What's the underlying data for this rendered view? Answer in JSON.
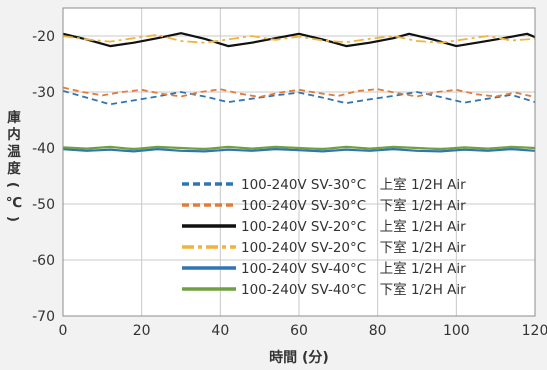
{
  "chart_data": {
    "type": "line",
    "title": "",
    "xlabel": "時間 (分)",
    "ylabel": [
      "庫",
      "内",
      "温",
      "度",
      "(",
      "℃",
      ")"
    ],
    "xlim": [
      0,
      120
    ],
    "ylim": [
      -70,
      -15
    ],
    "xticks": [
      0,
      20,
      40,
      60,
      80,
      100,
      120
    ],
    "yticks": [
      -20,
      -30,
      -40,
      -50,
      -60,
      -70
    ],
    "grid": true,
    "legend_position": "bottom-right",
    "series": [
      {
        "name": "100-240V SV-30°C　上室 1/2H Air",
        "color": "#2e75b6",
        "dash": "dashed",
        "x": [
          0,
          6,
          12,
          18,
          24,
          30,
          36,
          42,
          48,
          54,
          60,
          66,
          72,
          78,
          84,
          90,
          96,
          102,
          108,
          114,
          120
        ],
        "y": [
          -29.8,
          -31.0,
          -32.2,
          -31.5,
          -30.8,
          -30.0,
          -30.8,
          -31.8,
          -31.2,
          -30.6,
          -30.1,
          -31.0,
          -32.0,
          -31.3,
          -30.7,
          -30.0,
          -30.9,
          -31.9,
          -31.2,
          -30.5,
          -31.8
        ]
      },
      {
        "name": "100-240V SV-30°C　下室 1/2H Air",
        "color": "#e07b39",
        "dash": "dashed",
        "x": [
          0,
          5,
          10,
          15,
          20,
          25,
          30,
          35,
          40,
          45,
          50,
          55,
          60,
          65,
          70,
          75,
          80,
          85,
          90,
          95,
          100,
          105,
          110,
          115,
          120
        ],
        "y": [
          -29.2,
          -30.0,
          -30.6,
          -30.0,
          -29.6,
          -30.3,
          -30.8,
          -30.0,
          -29.5,
          -30.3,
          -30.9,
          -30.1,
          -29.6,
          -30.2,
          -30.7,
          -29.8,
          -29.5,
          -30.2,
          -30.8,
          -30.0,
          -29.6,
          -30.4,
          -30.8,
          -30.1,
          -30.9
        ]
      },
      {
        "name": "100-240V SV-20°C　上室 1/2H Air",
        "color": "#111111",
        "dash": "solid",
        "x": [
          0,
          6,
          12,
          18,
          24,
          30,
          36,
          42,
          48,
          54,
          60,
          66,
          72,
          78,
          84,
          88,
          94,
          100,
          106,
          112,
          118,
          120
        ],
        "y": [
          -19.6,
          -20.6,
          -21.8,
          -21.2,
          -20.4,
          -19.5,
          -20.5,
          -21.8,
          -21.2,
          -20.4,
          -19.6,
          -20.6,
          -21.8,
          -21.2,
          -20.4,
          -19.6,
          -20.6,
          -21.8,
          -21.1,
          -20.4,
          -19.6,
          -20.2
        ]
      },
      {
        "name": "100-240V SV-20°C　下室 1/2H Air",
        "color": "#f0b43c",
        "dash": "dashdot",
        "x": [
          0,
          6,
          12,
          18,
          24,
          30,
          36,
          42,
          48,
          54,
          60,
          66,
          72,
          78,
          84,
          90,
          96,
          102,
          108,
          114,
          120
        ],
        "y": [
          -20.0,
          -20.6,
          -21.0,
          -20.4,
          -19.8,
          -20.9,
          -21.2,
          -20.6,
          -20.0,
          -20.7,
          -20.1,
          -20.8,
          -21.1,
          -20.5,
          -20.0,
          -20.9,
          -21.2,
          -20.6,
          -20.0,
          -20.8,
          -20.5
        ]
      },
      {
        "name": "100-240V SV-40°C　上室 1/2H Air",
        "color": "#2e75b6",
        "dash": "solid",
        "x": [
          0,
          6,
          12,
          18,
          24,
          30,
          36,
          42,
          48,
          54,
          60,
          66,
          72,
          78,
          84,
          90,
          96,
          102,
          108,
          114,
          120
        ],
        "y": [
          -40.2,
          -40.5,
          -40.3,
          -40.6,
          -40.2,
          -40.5,
          -40.6,
          -40.3,
          -40.5,
          -40.2,
          -40.4,
          -40.6,
          -40.3,
          -40.5,
          -40.2,
          -40.5,
          -40.6,
          -40.3,
          -40.5,
          -40.2,
          -40.5
        ]
      },
      {
        "name": "100-240V SV-40°C　下室 1/2H Air",
        "color": "#70a040",
        "dash": "solid",
        "x": [
          0,
          6,
          12,
          18,
          24,
          30,
          36,
          42,
          48,
          54,
          60,
          66,
          72,
          78,
          84,
          90,
          96,
          102,
          108,
          114,
          120
        ],
        "y": [
          -39.9,
          -40.1,
          -39.8,
          -40.2,
          -39.8,
          -40.0,
          -40.2,
          -39.8,
          -40.1,
          -39.8,
          -40.0,
          -40.2,
          -39.8,
          -40.1,
          -39.8,
          -40.0,
          -40.2,
          -39.9,
          -40.1,
          -39.8,
          -40.0
        ]
      }
    ]
  }
}
